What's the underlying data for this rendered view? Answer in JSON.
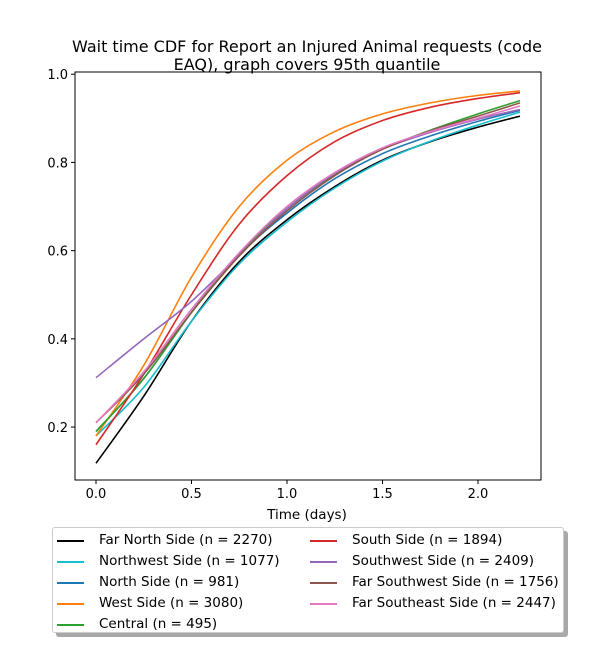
{
  "chart_data": {
    "type": "line",
    "title": "Wait time CDF for Report an Injured Animal  requests (code\nEAQ), graph covers 95th quantile",
    "xlabel": "Time (days)",
    "ylabel": "",
    "xlim": [
      -0.11,
      2.33
    ],
    "ylim": [
      0.08,
      1.005
    ],
    "xticks": [
      0.0,
      0.5,
      1.0,
      1.5,
      2.0
    ],
    "xtick_labels": [
      "0.0",
      "0.5",
      "1.0",
      "1.5",
      "2.0"
    ],
    "yticks": [
      0.2,
      0.4,
      0.6,
      0.8,
      1.0
    ],
    "ytick_labels": [
      "0.2",
      "0.4",
      "0.6",
      "0.8",
      "1.0"
    ],
    "grid": false,
    "legend_position": "below plot, two columns",
    "x": [
      0.0,
      0.25,
      0.5,
      0.75,
      1.0,
      1.25,
      1.5,
      1.75,
      2.0,
      2.22
    ],
    "series": [
      {
        "name": "Far North Side (n = 2270)",
        "color": "#000000",
        "values": [
          0.118,
          0.27,
          0.44,
          0.575,
          0.67,
          0.745,
          0.805,
          0.847,
          0.88,
          0.905
        ]
      },
      {
        "name": "Northwest Side (n = 1077)",
        "color": "#17becf",
        "values": [
          0.18,
          0.29,
          0.44,
          0.57,
          0.665,
          0.742,
          0.803,
          0.848,
          0.885,
          0.914
        ]
      },
      {
        "name": "North Side (n = 981)",
        "color": "#1f77b4",
        "values": [
          0.19,
          0.31,
          0.46,
          0.59,
          0.685,
          0.763,
          0.82,
          0.86,
          0.893,
          0.918
        ]
      },
      {
        "name": "West Side (n = 3080)",
        "color": "#ff7f0e",
        "values": [
          0.18,
          0.34,
          0.54,
          0.7,
          0.805,
          0.87,
          0.91,
          0.935,
          0.952,
          0.962
        ]
      },
      {
        "name": "Central (n = 495)",
        "color": "#2ca02c",
        "values": [
          0.19,
          0.31,
          0.46,
          0.593,
          0.695,
          0.773,
          0.83,
          0.873,
          0.91,
          0.94
        ]
      },
      {
        "name": "South Side (n = 1894)",
        "color": "#d62728",
        "values": [
          0.16,
          0.32,
          0.5,
          0.66,
          0.77,
          0.847,
          0.895,
          0.925,
          0.945,
          0.958
        ]
      },
      {
        "name": "Southwest Side (n = 2409)",
        "color": "#9467bd",
        "values": [
          0.312,
          0.4,
          0.485,
          0.59,
          0.695,
          0.775,
          0.83,
          0.868,
          0.898,
          0.92
        ]
      },
      {
        "name": "Far Southwest Side (n = 1756)",
        "color": "#8c564b",
        "values": [
          0.21,
          0.32,
          0.46,
          0.588,
          0.69,
          0.77,
          0.83,
          0.872,
          0.905,
          0.935
        ]
      },
      {
        "name": "Far Southeast Side (n = 2447)",
        "color": "#e377c2",
        "values": [
          0.21,
          0.325,
          0.467,
          0.595,
          0.7,
          0.777,
          0.833,
          0.87,
          0.9,
          0.928
        ]
      }
    ]
  }
}
